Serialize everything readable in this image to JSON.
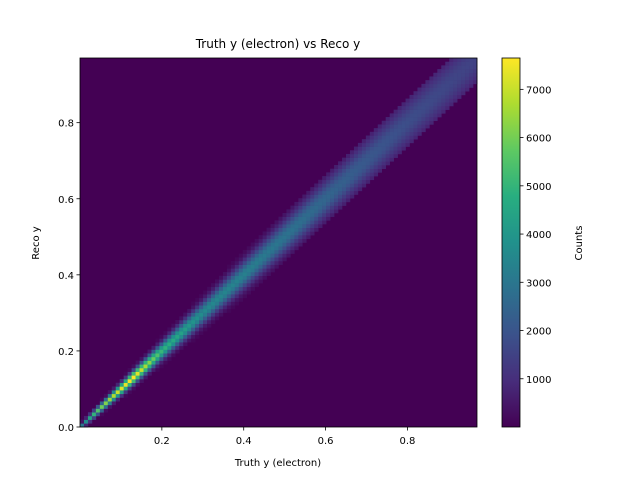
{
  "chart_data": {
    "type": "heatmap",
    "title": "Truth y (electron) vs Reco y",
    "xlabel": "Truth y (electron)",
    "ylabel": "Reco y",
    "xlim": [
      0.0,
      0.97
    ],
    "ylim": [
      0.0,
      0.97
    ],
    "x_ticks": [
      {
        "value": 0.2,
        "label": "0.2"
      },
      {
        "value": 0.4,
        "label": "0.4"
      },
      {
        "value": 0.6,
        "label": "0.6"
      },
      {
        "value": 0.8,
        "label": "0.8"
      }
    ],
    "y_ticks": [
      {
        "value": 0.0,
        "label": "0.0"
      },
      {
        "value": 0.2,
        "label": "0.2"
      },
      {
        "value": 0.4,
        "label": "0.4"
      },
      {
        "value": 0.6,
        "label": "0.6"
      },
      {
        "value": 0.8,
        "label": "0.8"
      }
    ],
    "bins": 100,
    "colormap": "viridis",
    "grid": false,
    "colorbar": {
      "label": "Counts",
      "range": [
        0,
        7650
      ],
      "ticks": [
        {
          "value": 1000,
          "label": "1000"
        },
        {
          "value": 2000,
          "label": "2000"
        },
        {
          "value": 3000,
          "label": "3000"
        },
        {
          "value": 4000,
          "label": "4000"
        },
        {
          "value": 5000,
          "label": "5000"
        },
        {
          "value": 6000,
          "label": "6000"
        },
        {
          "value": 7000,
          "label": "7000"
        }
      ]
    },
    "diagonal_profile": {
      "description_points_truth_y": [
        0.0,
        0.02,
        0.05,
        0.1,
        0.13,
        0.16,
        0.2,
        0.3,
        0.4,
        0.5,
        0.6,
        0.7,
        0.8,
        0.9,
        0.97
      ],
      "peak_counts": [
        2500,
        4200,
        5800,
        7200,
        7650,
        6600,
        5000,
        3600,
        3300,
        2900,
        2500,
        2100,
        1800,
        1600,
        1500
      ]
    }
  }
}
